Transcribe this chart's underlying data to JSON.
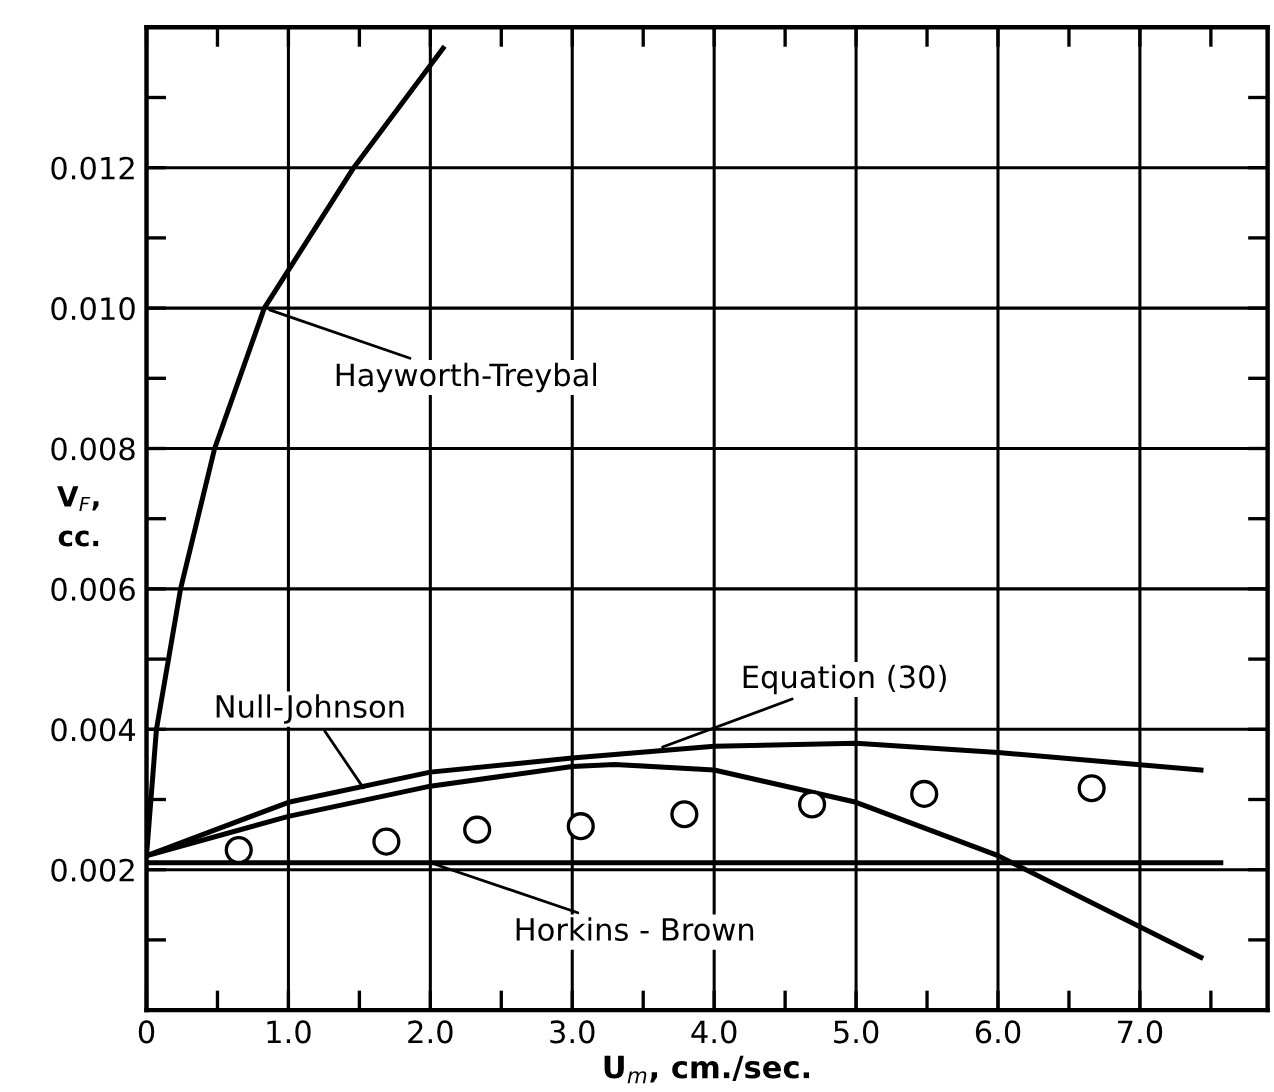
{
  "chart_data": {
    "type": "line",
    "xlabel": "U$_{m}$, cm./sec.",
    "ylabel": "V$_{F}$,\ncc.",
    "xlim": [
      0,
      7.9
    ],
    "ylim": [
      0,
      0.014
    ],
    "xticks": [
      {
        "value": 0,
        "label": "0"
      },
      {
        "value": 0.5,
        "label": null
      },
      {
        "value": 1,
        "label": "1.0"
      },
      {
        "value": 1.5,
        "label": null
      },
      {
        "value": 2,
        "label": "2.0"
      },
      {
        "value": 2.5,
        "label": null
      },
      {
        "value": 3,
        "label": "3.0"
      },
      {
        "value": 3.5,
        "label": null
      },
      {
        "value": 4,
        "label": "4.0"
      },
      {
        "value": 4.5,
        "label": null
      },
      {
        "value": 5,
        "label": "5.0"
      },
      {
        "value": 5.5,
        "label": null
      },
      {
        "value": 6,
        "label": "6.0"
      },
      {
        "value": 6.5,
        "label": null
      },
      {
        "value": 7,
        "label": "7.0"
      },
      {
        "value": 7.5,
        "label": null
      }
    ],
    "yticks": [
      {
        "value": 0.001,
        "label": null
      },
      {
        "value": 0.002,
        "label": "0.002"
      },
      {
        "value": 0.003,
        "label": null
      },
      {
        "value": 0.004,
        "label": "0.004"
      },
      {
        "value": 0.005,
        "label": null
      },
      {
        "value": 0.006,
        "label": "0.006"
      },
      {
        "value": 0.007,
        "label": null
      },
      {
        "value": 0.008,
        "label": "0.008"
      },
      {
        "value": 0.009,
        "label": null
      },
      {
        "value": 0.01,
        "label": "0.010"
      },
      {
        "value": 0.011,
        "label": null
      },
      {
        "value": 0.012,
        "label": "0.012"
      },
      {
        "value": 0.013,
        "label": null
      }
    ],
    "grid": true,
    "series": [
      {
        "color": "#000000",
        "x": [
          0,
          0.07,
          0.24,
          0.48,
          0.83,
          1.46,
          2.09
        ],
        "values": [
          0.0022,
          0.004,
          0.006,
          0.008,
          0.01,
          0.012,
          0.0137
        ]
      },
      {
        "color": "#000000",
        "x": [
          0,
          1,
          2,
          3,
          4,
          5,
          6,
          7.43
        ],
        "values": [
          0.0022,
          0.00296,
          0.00339,
          0.00359,
          0.00376,
          0.0038,
          0.00367,
          0.00342
        ]
      },
      {
        "color": "#000000",
        "x": [
          0,
          1,
          2,
          3,
          3.3,
          4,
          5,
          6,
          7.43
        ],
        "values": [
          0.0022,
          0.00276,
          0.00319,
          0.00347,
          0.0035,
          0.00342,
          0.00296,
          0.0022,
          0.00075
        ]
      },
      {
        "color": "#000000",
        "x": [
          0,
          7.57
        ],
        "values": [
          0.0021,
          0.0021
        ]
      },
      {
        "type": "scatter",
        "marker": "circle",
        "color": "#000000",
        "x": [
          0.65,
          1.69,
          2.33,
          3.06,
          3.79,
          4.69,
          5.48,
          6.66
        ],
        "values": [
          0.00228,
          0.0024,
          0.00257,
          0.00262,
          0.00279,
          0.00293,
          0.00308,
          0.00316
        ]
      }
    ],
    "annotations": [
      {
        "text": "Hayworth-Treybal",
        "x": 0.83,
        "y": 0.01
      },
      {
        "text": "Null-Johnson",
        "x": 1.55,
        "y": 0.0031
      },
      {
        "text": "Equation (30)",
        "x": 3.6,
        "y": 0.00372
      },
      {
        "text": "Horkins - Brown",
        "x": 2.0,
        "y": 0.0021
      }
    ]
  }
}
